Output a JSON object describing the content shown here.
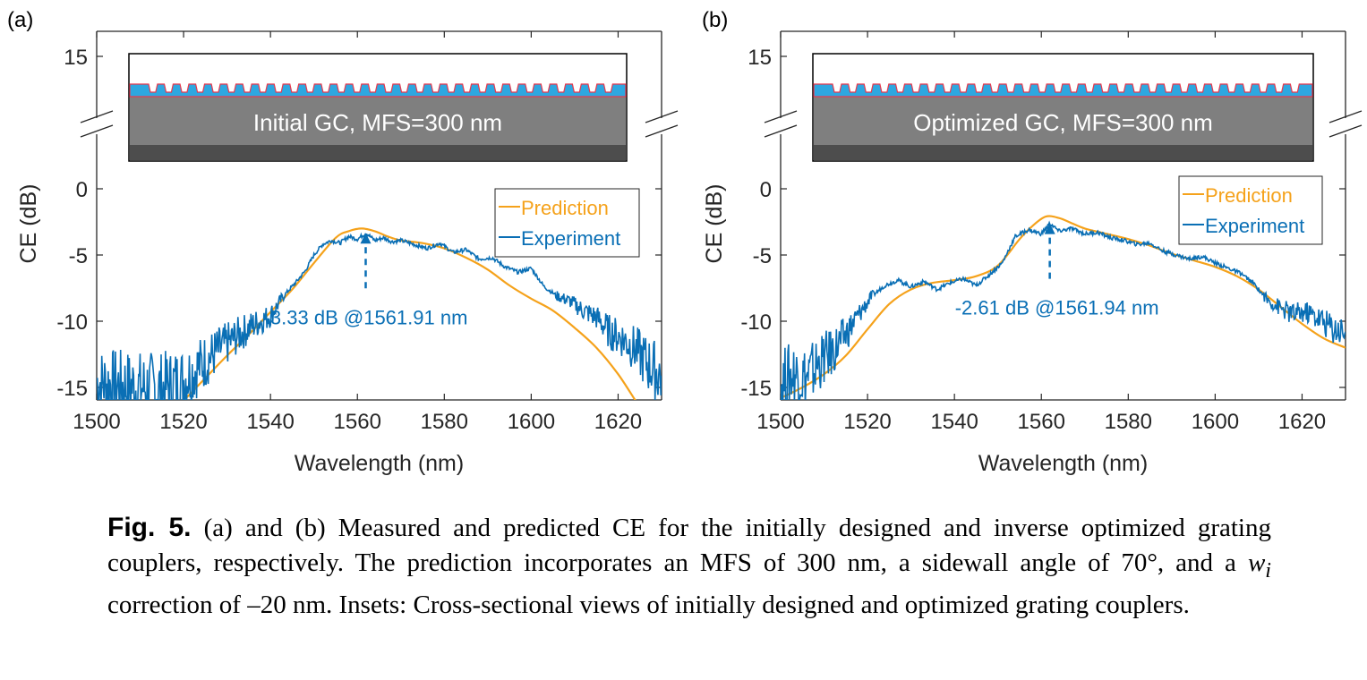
{
  "colors": {
    "prediction": "#F5A21B",
    "experiment": "#0A6FB5",
    "annotation": "#0A6FB5",
    "inset_silicon": "#2EA7E0",
    "inset_oxide": "#7F7F7F",
    "inset_substrate": "#4D4D4D",
    "inset_outline": "#E8394D"
  },
  "chart_data": [
    {
      "type": "line",
      "panel_label": "(a)",
      "xlabel": "Wavelength (nm)",
      "ylabel": "CE (dB)",
      "xlim": [
        1500,
        1630
      ],
      "ylim": [
        -16,
        3.5
      ],
      "xticks": [
        1500,
        1520,
        1540,
        1560,
        1580,
        1600,
        1620
      ],
      "yticks": [
        0,
        -5,
        -10,
        -15
      ],
      "broken_axis_upper_tick": 15,
      "legend": {
        "placement": "right",
        "entries": [
          "Prediction",
          "Experiment"
        ]
      },
      "inset_label": "Initial GC, MFS=300 nm",
      "annotation": {
        "text": "-3.33 dB @1561.91 nm",
        "x": 1561.91,
        "y": -3.33
      },
      "series": [
        {
          "name": "Prediction",
          "x": [
            1520,
            1525,
            1530,
            1535,
            1540,
            1545,
            1550,
            1555,
            1558,
            1561,
            1564,
            1567,
            1570,
            1575,
            1580,
            1585,
            1590,
            1595,
            1600,
            1605,
            1610,
            1615,
            1620,
            1624
          ],
          "values": [
            -16,
            -14.3,
            -12.6,
            -11.0,
            -9.3,
            -7.6,
            -5.6,
            -3.7,
            -3.2,
            -3.0,
            -3.2,
            -3.6,
            -3.9,
            -4.1,
            -4.5,
            -5.2,
            -6.1,
            -7.3,
            -8.3,
            -9.2,
            -10.5,
            -12.0,
            -14.0,
            -16
          ]
        },
        {
          "name": "Experiment",
          "x": [
            1500,
            1505,
            1510,
            1515,
            1520,
            1525,
            1528,
            1532,
            1536,
            1540,
            1543,
            1546,
            1548,
            1550,
            1552,
            1554,
            1556,
            1558,
            1560,
            1562,
            1564,
            1566,
            1568,
            1570,
            1573,
            1576,
            1579,
            1582,
            1585,
            1588,
            1591,
            1594,
            1597,
            1600,
            1603,
            1606,
            1609,
            1612,
            1615,
            1618,
            1621,
            1624,
            1627,
            1630
          ],
          "values": [
            -14.6,
            -14.8,
            -15.0,
            -15.1,
            -14.4,
            -13.0,
            -12.2,
            -11.2,
            -10.3,
            -9.6,
            -8.1,
            -7.0,
            -6.2,
            -5.0,
            -4.2,
            -3.9,
            -4.1,
            -3.6,
            -3.8,
            -3.33,
            -3.9,
            -3.7,
            -4.0,
            -3.9,
            -4.2,
            -4.5,
            -4.1,
            -4.8,
            -4.6,
            -5.3,
            -5.2,
            -5.9,
            -6.3,
            -6.0,
            -7.4,
            -8.1,
            -8.5,
            -9.2,
            -9.7,
            -10.8,
            -11.3,
            -12.1,
            -13.3,
            -14.1
          ]
        }
      ]
    },
    {
      "type": "line",
      "panel_label": "(b)",
      "xlabel": "Wavelength (nm)",
      "ylabel": "CE (dB)",
      "xlim": [
        1500,
        1630
      ],
      "ylim": [
        -16,
        3.5
      ],
      "xticks": [
        1500,
        1520,
        1540,
        1560,
        1580,
        1600,
        1620
      ],
      "yticks": [
        0,
        -5,
        -10,
        -15
      ],
      "broken_axis_upper_tick": 15,
      "legend": {
        "placement": "right",
        "entries": [
          "Prediction",
          "Experiment"
        ]
      },
      "inset_label": "Optimized GC, MFS=300 nm",
      "annotation": {
        "text": "-2.61 dB @1561.94 nm",
        "x": 1561.94,
        "y": -2.61
      },
      "series": [
        {
          "name": "Prediction",
          "x": [
            1500,
            1505,
            1510,
            1515,
            1520,
            1525,
            1530,
            1535,
            1540,
            1545,
            1550,
            1555,
            1558,
            1561,
            1564,
            1567,
            1570,
            1575,
            1580,
            1585,
            1590,
            1595,
            1600,
            1605,
            1610,
            1615,
            1620,
            1625,
            1630
          ],
          "values": [
            -15.8,
            -15.0,
            -14.0,
            -12.6,
            -10.6,
            -8.7,
            -7.6,
            -7.1,
            -6.9,
            -6.6,
            -5.8,
            -3.8,
            -2.8,
            -2.1,
            -2.2,
            -2.6,
            -3.0,
            -3.4,
            -3.8,
            -4.3,
            -4.9,
            -5.4,
            -5.9,
            -6.6,
            -7.6,
            -8.9,
            -10.2,
            -11.3,
            -12.0
          ]
        },
        {
          "name": "Experiment",
          "x": [
            1500,
            1503,
            1506,
            1509,
            1512,
            1515,
            1518,
            1521,
            1524,
            1527,
            1530,
            1533,
            1536,
            1539,
            1542,
            1545,
            1548,
            1551,
            1554,
            1557,
            1560,
            1562,
            1564,
            1567,
            1570,
            1573,
            1576,
            1579,
            1582,
            1585,
            1588,
            1591,
            1594,
            1597,
            1600,
            1603,
            1606,
            1609,
            1612,
            1615,
            1618,
            1621,
            1624,
            1627,
            1630
          ],
          "values": [
            -14.6,
            -13.9,
            -14.3,
            -13.1,
            -12.3,
            -11.0,
            -9.5,
            -8.1,
            -7.3,
            -6.9,
            -7.4,
            -7.0,
            -7.6,
            -7.1,
            -6.8,
            -7.3,
            -6.5,
            -5.6,
            -3.6,
            -3.1,
            -3.4,
            -2.61,
            -3.2,
            -3.0,
            -3.4,
            -3.3,
            -3.7,
            -3.9,
            -4.2,
            -4.1,
            -4.7,
            -5.0,
            -5.3,
            -5.1,
            -5.6,
            -6.0,
            -6.4,
            -7.2,
            -8.4,
            -9.0,
            -9.5,
            -9.3,
            -9.8,
            -10.5,
            -10.8
          ]
        }
      ]
    }
  ],
  "caption": {
    "fig_label": "Fig. 5.",
    "part1": " (a) and (b) Measured and predicted CE for the initially designed and inverse optimized grating couplers, respectively. The prediction incorporates an MFS of 300 nm, a sidewall angle of 70°, and a ",
    "var": "w",
    "var_sub": "i",
    "part2": " correction of –20 nm. Insets: Cross-sectional views of initially designed and optimized grating couplers."
  }
}
